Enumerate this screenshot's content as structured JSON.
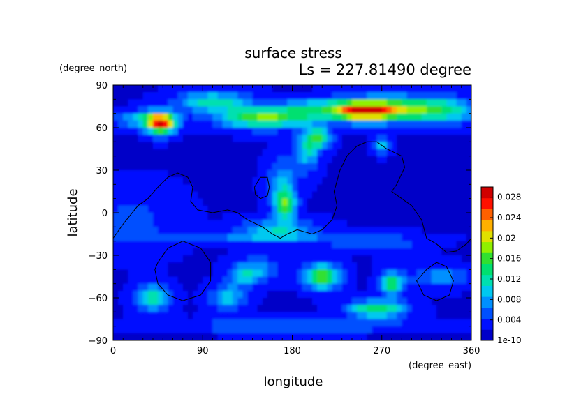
{
  "chart_data": {
    "type": "heatmap",
    "title": "surface stress",
    "subtitle": "Ls = 227.81490 degree",
    "xlabel": "longitude",
    "ylabel": "latitude",
    "xunits": "(degree_east)",
    "yunits": "(degree_north)",
    "xlim": [
      0,
      360
    ],
    "ylim": [
      -90,
      90
    ],
    "x_ticks": [
      "0",
      "90",
      "180",
      "270",
      "360"
    ],
    "y_ticks": [
      "90",
      "60",
      "30",
      "0",
      "−30",
      "−60",
      "−90"
    ],
    "colorbar_labels": [
      "1e-10",
      "0.004",
      "0.008",
      "0.012",
      "0.016",
      "0.02",
      "0.024",
      "0.028"
    ],
    "colorbar_range": [
      0,
      0.03
    ],
    "colormap": [
      "#0000c8",
      "#0010ff",
      "#0050ff",
      "#0090ff",
      "#00c8f0",
      "#00e0b0",
      "#00e070",
      "#30e030",
      "#90f000",
      "#e0e000",
      "#ffb000",
      "#ff6000",
      "#ff1000",
      "#d00000"
    ],
    "background_level": 0.002,
    "features": [
      {
        "lon": 48,
        "lat": 63,
        "sx": 10,
        "sy": 5,
        "v": 0.024
      },
      {
        "lon": 30,
        "lat": 66,
        "sx": 20,
        "sy": 4,
        "v": 0.008
      },
      {
        "lon": 100,
        "lat": 78,
        "sx": 25,
        "sy": 5,
        "v": 0.01
      },
      {
        "lon": 150,
        "lat": 67,
        "sx": 30,
        "sy": 5,
        "v": 0.015
      },
      {
        "lon": 200,
        "lat": 73,
        "sx": 25,
        "sy": 5,
        "v": 0.008
      },
      {
        "lon": 250,
        "lat": 72,
        "sx": 22,
        "sy": 5,
        "v": 0.022
      },
      {
        "lon": 290,
        "lat": 73,
        "sx": 30,
        "sy": 6,
        "v": 0.013
      },
      {
        "lon": 335,
        "lat": 72,
        "sx": 25,
        "sy": 6,
        "v": 0.008
      },
      {
        "lon": 208,
        "lat": 53,
        "sx": 8,
        "sy": 5,
        "v": 0.012
      },
      {
        "lon": 195,
        "lat": 45,
        "sx": 8,
        "sy": 10,
        "v": 0.009
      },
      {
        "lon": 170,
        "lat": 20,
        "sx": 10,
        "sy": 12,
        "v": 0.007
      },
      {
        "lon": 173,
        "lat": 5,
        "sx": 7,
        "sy": 7,
        "v": 0.013
      },
      {
        "lon": 165,
        "lat": -12,
        "sx": 25,
        "sy": 5,
        "v": 0.008
      },
      {
        "lon": 140,
        "lat": -18,
        "sx": 80,
        "sy": 3,
        "v": 0.004
      },
      {
        "lon": 265,
        "lat": -22,
        "sx": 30,
        "sy": 4,
        "v": 0.004
      },
      {
        "lon": 210,
        "lat": -45,
        "sx": 12,
        "sy": 6,
        "v": 0.015
      },
      {
        "lon": 145,
        "lat": -40,
        "sx": 15,
        "sy": 6,
        "v": 0.006
      },
      {
        "lon": 40,
        "lat": -60,
        "sx": 12,
        "sy": 6,
        "v": 0.01
      },
      {
        "lon": 115,
        "lat": -60,
        "sx": 12,
        "sy": 6,
        "v": 0.008
      },
      {
        "lon": 130,
        "lat": -45,
        "sx": 10,
        "sy": 5,
        "v": 0.006
      },
      {
        "lon": 265,
        "lat": -68,
        "sx": 20,
        "sy": 4,
        "v": 0.013
      },
      {
        "lon": 280,
        "lat": -50,
        "sx": 8,
        "sy": 6,
        "v": 0.013
      },
      {
        "lon": 330,
        "lat": -45,
        "sx": 20,
        "sy": 5,
        "v": 0.006
      },
      {
        "lon": 270,
        "lat": 48,
        "sx": 6,
        "sy": 4,
        "v": 0.008
      },
      {
        "lon": 20,
        "lat": -5,
        "sx": 30,
        "sy": 15,
        "v": 0.003
      },
      {
        "lon": 180,
        "lat": -80,
        "sx": 120,
        "sy": 3,
        "v": 0.004
      }
    ],
    "topography_contours": [
      [
        [
          0,
          -18
        ],
        [
          10,
          -8
        ],
        [
          25,
          5
        ],
        [
          35,
          10
        ],
        [
          45,
          18
        ],
        [
          55,
          25
        ],
        [
          65,
          28
        ],
        [
          75,
          25
        ],
        [
          80,
          18
        ],
        [
          78,
          8
        ],
        [
          85,
          2
        ],
        [
          100,
          0
        ],
        [
          115,
          2
        ],
        [
          125,
          0
        ],
        [
          135,
          -5
        ],
        [
          150,
          -10
        ],
        [
          160,
          -15
        ],
        [
          168,
          -18
        ],
        [
          175,
          -15
        ],
        [
          185,
          -12
        ],
        [
          200,
          -15
        ],
        [
          210,
          -12
        ],
        [
          220,
          -5
        ],
        [
          225,
          5
        ],
        [
          222,
          15
        ],
        [
          228,
          30
        ],
        [
          235,
          40
        ],
        [
          245,
          47
        ],
        [
          255,
          50
        ],
        [
          265,
          50
        ],
        [
          275,
          45
        ],
        [
          290,
          40
        ],
        [
          293,
          32
        ],
        [
          285,
          20
        ],
        [
          280,
          15
        ],
        [
          290,
          10
        ],
        [
          300,
          5
        ],
        [
          310,
          -5
        ],
        [
          315,
          -18
        ],
        [
          325,
          -22
        ],
        [
          335,
          -28
        ],
        [
          345,
          -27
        ],
        [
          355,
          -22
        ],
        [
          360,
          -18
        ]
      ],
      [
        [
          45,
          -35
        ],
        [
          55,
          -25
        ],
        [
          70,
          -20
        ],
        [
          88,
          -25
        ],
        [
          98,
          -35
        ],
        [
          98,
          -48
        ],
        [
          88,
          -58
        ],
        [
          70,
          -62
        ],
        [
          55,
          -58
        ],
        [
          45,
          -50
        ],
        [
          42,
          -40
        ],
        [
          45,
          -35
        ]
      ],
      [
        [
          315,
          -40
        ],
        [
          325,
          -35
        ],
        [
          335,
          -38
        ],
        [
          342,
          -48
        ],
        [
          338,
          -58
        ],
        [
          325,
          -62
        ],
        [
          312,
          -58
        ],
        [
          305,
          -48
        ],
        [
          315,
          -40
        ]
      ],
      [
        [
          142,
          18
        ],
        [
          148,
          25
        ],
        [
          155,
          25
        ],
        [
          157,
          18
        ],
        [
          155,
          12
        ],
        [
          148,
          10
        ],
        [
          143,
          13
        ],
        [
          142,
          18
        ]
      ]
    ]
  }
}
